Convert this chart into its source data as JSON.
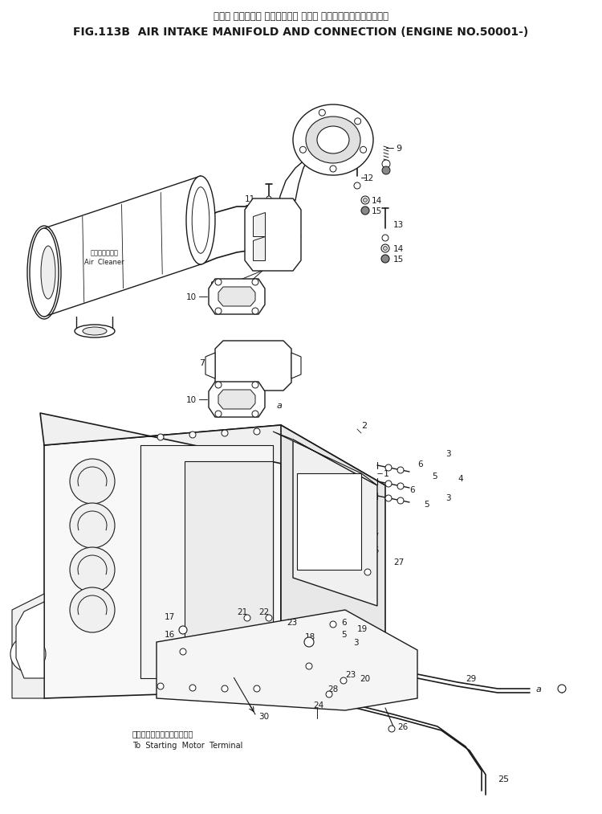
{
  "title_jp": "エアー インテーク マニホールド および コネクション　　適用号機",
  "title_en": "FIG.113B  AIR INTAKE MANIFOLD AND CONNECTION (ENGINE NO.50001-)",
  "bg_color": "#ffffff",
  "line_color": "#1a1a1a",
  "text_color": "#1a1a1a",
  "footer_jp": "スターティングモータ端子へ",
  "footer_en": "To  Starting  Motor  Terminal"
}
